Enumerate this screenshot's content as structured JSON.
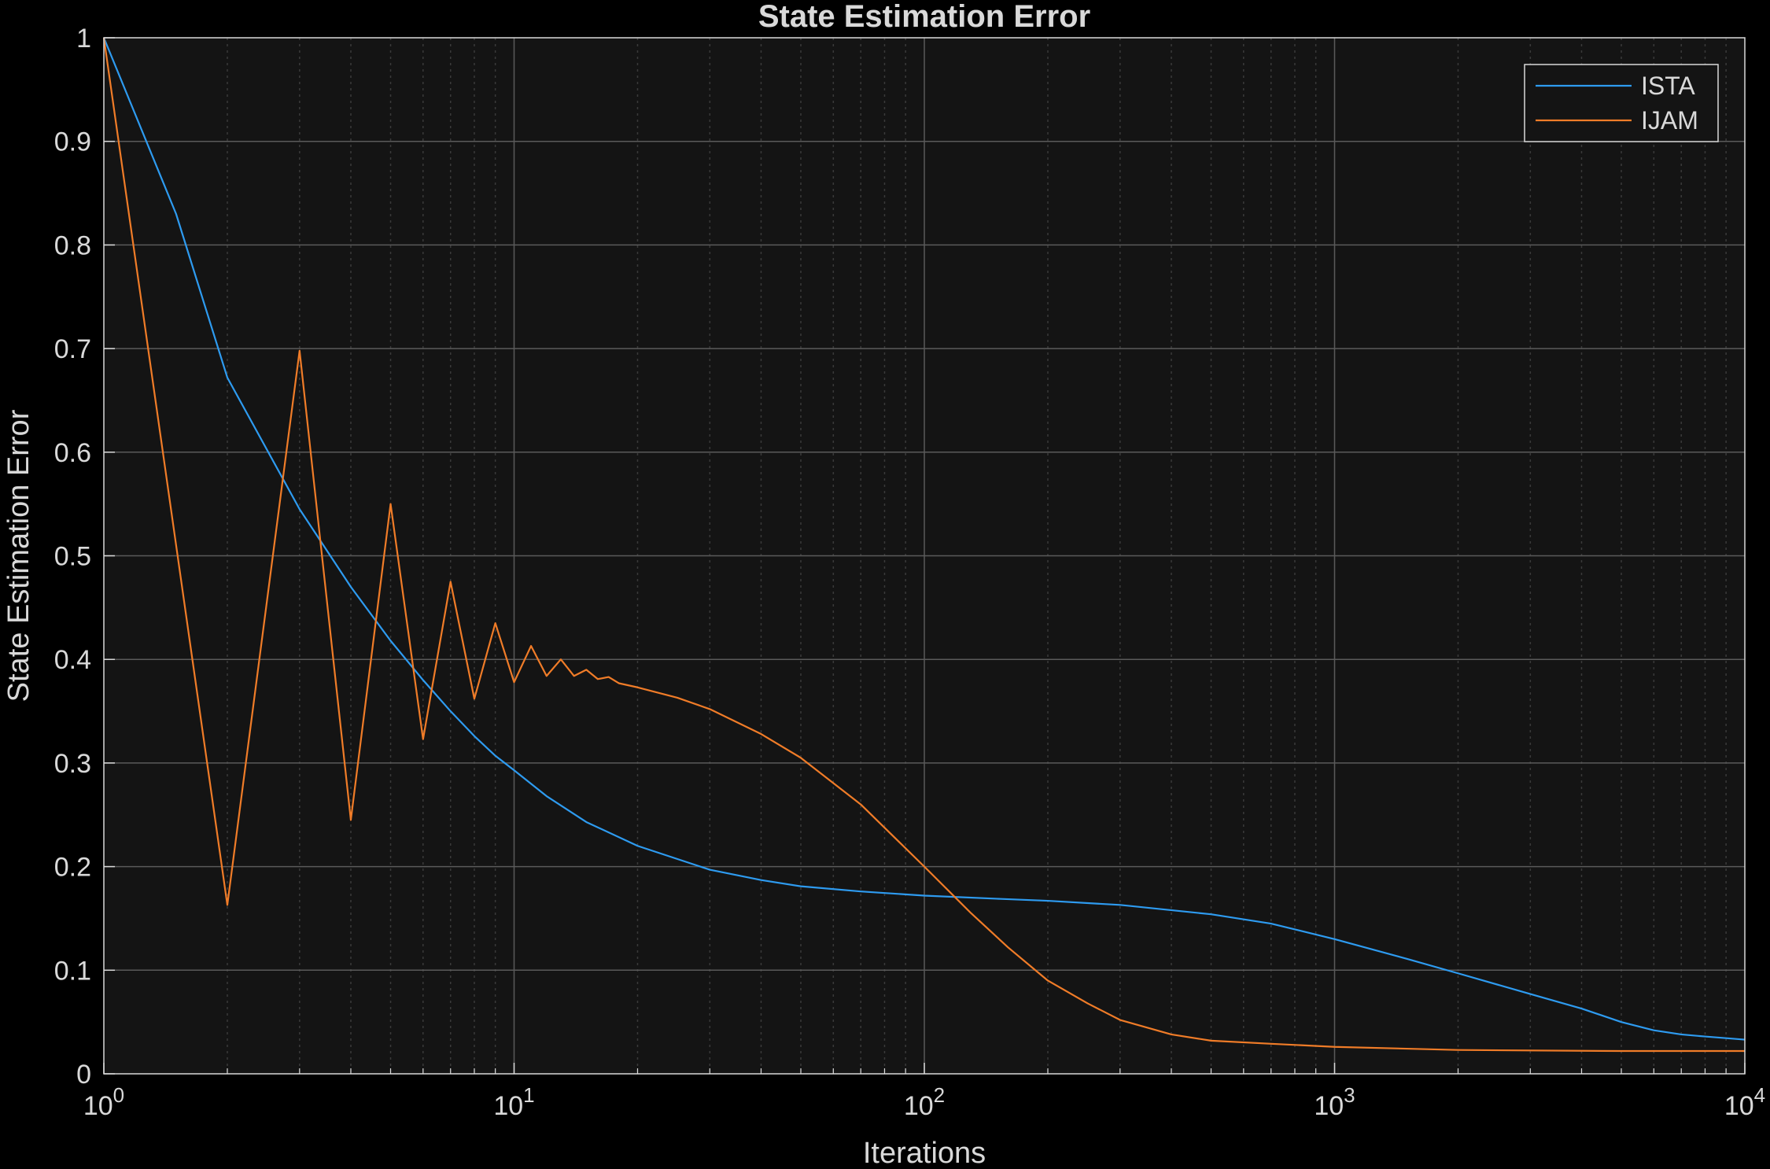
{
  "chart_data": {
    "type": "line",
    "title": "State Estimation Error",
    "xlabel": "Iterations",
    "ylabel": "State Estimation Error",
    "xscale": "log",
    "xlim": [
      1,
      10000
    ],
    "ylim": [
      0,
      1
    ],
    "grid": true,
    "minor_grid": true,
    "legend_position": "top-right",
    "background": "#141414",
    "axes_color": "#d9d9d9",
    "x_tick_labels": [
      "10^0",
      "10^1",
      "10^2",
      "10^3",
      "10^4"
    ],
    "y_tick_labels": [
      "0",
      "0.1",
      "0.2",
      "0.3",
      "0.4",
      "0.5",
      "0.6",
      "0.7",
      "0.8",
      "0.9",
      "1"
    ],
    "series": [
      {
        "name": "ISTA",
        "color": "#2e9bf0",
        "points": [
          [
            1,
            1.0
          ],
          [
            1.5,
            0.83
          ],
          [
            2,
            0.672
          ],
          [
            3,
            0.545
          ],
          [
            4,
            0.47
          ],
          [
            5,
            0.418
          ],
          [
            6,
            0.38
          ],
          [
            7,
            0.35
          ],
          [
            8,
            0.326
          ],
          [
            9,
            0.307
          ],
          [
            10,
            0.293
          ],
          [
            12,
            0.268
          ],
          [
            15,
            0.243
          ],
          [
            20,
            0.22
          ],
          [
            30,
            0.197
          ],
          [
            40,
            0.187
          ],
          [
            50,
            0.181
          ],
          [
            70,
            0.176
          ],
          [
            100,
            0.172
          ],
          [
            150,
            0.169
          ],
          [
            200,
            0.167
          ],
          [
            300,
            0.163
          ],
          [
            500,
            0.154
          ],
          [
            700,
            0.145
          ],
          [
            1000,
            0.13
          ],
          [
            1500,
            0.111
          ],
          [
            2000,
            0.097
          ],
          [
            3000,
            0.077
          ],
          [
            4000,
            0.063
          ],
          [
            5000,
            0.05
          ],
          [
            6000,
            0.042
          ],
          [
            7000,
            0.038
          ],
          [
            8000,
            0.036
          ],
          [
            10000,
            0.033
          ]
        ]
      },
      {
        "name": "IJAM",
        "color": "#f07c28",
        "points": [
          [
            1,
            1.0
          ],
          [
            2,
            0.163
          ],
          [
            3,
            0.698
          ],
          [
            4,
            0.245
          ],
          [
            5,
            0.55
          ],
          [
            6,
            0.323
          ],
          [
            7,
            0.475
          ],
          [
            8,
            0.362
          ],
          [
            9,
            0.435
          ],
          [
            10,
            0.378
          ],
          [
            11,
            0.413
          ],
          [
            12,
            0.384
          ],
          [
            13,
            0.4
          ],
          [
            14,
            0.384
          ],
          [
            15,
            0.39
          ],
          [
            16,
            0.381
          ],
          [
            17,
            0.383
          ],
          [
            18,
            0.377
          ],
          [
            20,
            0.373
          ],
          [
            25,
            0.363
          ],
          [
            30,
            0.352
          ],
          [
            40,
            0.328
          ],
          [
            50,
            0.305
          ],
          [
            70,
            0.26
          ],
          [
            100,
            0.2
          ],
          [
            130,
            0.155
          ],
          [
            160,
            0.122
          ],
          [
            200,
            0.09
          ],
          [
            250,
            0.068
          ],
          [
            300,
            0.052
          ],
          [
            400,
            0.038
          ],
          [
            500,
            0.032
          ],
          [
            700,
            0.029
          ],
          [
            1000,
            0.026
          ],
          [
            2000,
            0.023
          ],
          [
            5000,
            0.022
          ],
          [
            10000,
            0.022
          ]
        ]
      }
    ]
  }
}
